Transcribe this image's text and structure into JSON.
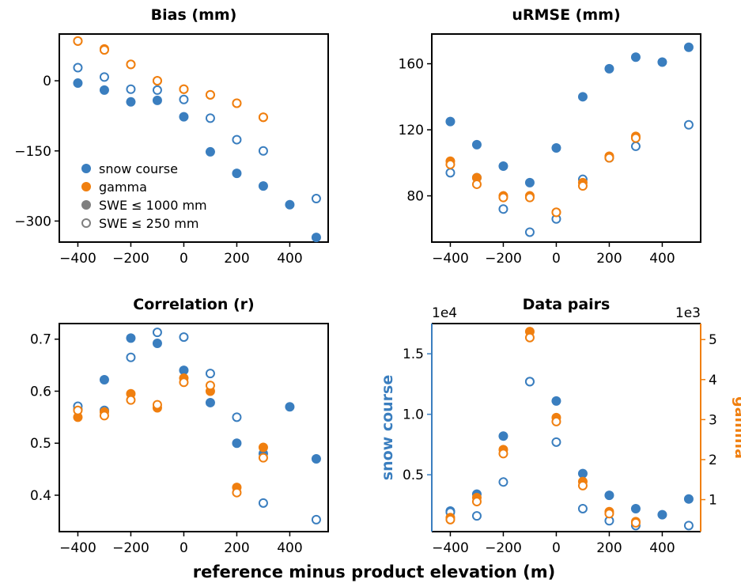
{
  "figure": {
    "xlabel": "reference minus product elevation (m)"
  },
  "colors": {
    "snow": "#3a7ebf",
    "gamma": "#f07f0f",
    "gray": "#7f7f7f"
  },
  "legend": {
    "entries": [
      {
        "label": "snow course",
        "style": "snow"
      },
      {
        "label": "gamma",
        "style": "gamma"
      },
      {
        "label": "SWE ≤ 1000 mm",
        "style": "filled-gray"
      },
      {
        "label": "SWE ≤ 250 mm",
        "style": "open-gray"
      }
    ],
    "location": "lower-left of Bias panel"
  },
  "chart_data": [
    {
      "type": "scatter",
      "title": "Bias (mm)",
      "xlabel": "",
      "ylabel": "",
      "xlim": [
        -470,
        545
      ],
      "ylim": [
        -345,
        100
      ],
      "xticks": [
        -400,
        -200,
        0,
        200,
        400
      ],
      "yticks": [
        0,
        -150,
        -300
      ],
      "series": [
        {
          "name": "snow course",
          "swe": "≤ 1000 mm",
          "style": "filled",
          "color": "snow",
          "x": [
            -400,
            -300,
            -200,
            -100,
            0,
            100,
            200,
            300,
            400,
            500
          ],
          "y": [
            -5,
            -20,
            -45,
            -42,
            -77,
            -152,
            -198,
            -225,
            -265,
            -335
          ]
        },
        {
          "name": "snow course",
          "swe": "≤ 250 mm",
          "style": "open",
          "color": "snow",
          "x": [
            -400,
            -300,
            -200,
            -100,
            0,
            100,
            200,
            300,
            500
          ],
          "y": [
            28,
            8,
            -18,
            -20,
            -40,
            -80,
            -126,
            -150,
            -252
          ]
        },
        {
          "name": "gamma",
          "swe": "≤ 1000 mm",
          "style": "filled",
          "color": "gamma",
          "x": [
            -400,
            -300,
            -200,
            -100,
            0,
            100,
            200,
            300
          ],
          "y": [
            85,
            68,
            35,
            0,
            -18,
            -30,
            -48,
            -78
          ]
        },
        {
          "name": "gamma",
          "swe": "≤ 250 mm",
          "style": "open",
          "color": "gamma",
          "x": [
            -400,
            -300,
            -200,
            -100,
            0,
            100,
            200,
            300
          ],
          "y": [
            85,
            66,
            35,
            0,
            -18,
            -30,
            -48,
            -78
          ]
        }
      ]
    },
    {
      "type": "scatter",
      "title": "uRMSE (mm)",
      "xlabel": "",
      "ylabel": "",
      "xlim": [
        -470,
        545
      ],
      "ylim": [
        52,
        178
      ],
      "xticks": [
        -400,
        -200,
        0,
        200,
        400
      ],
      "yticks": [
        80,
        120,
        160
      ],
      "series": [
        {
          "name": "snow course",
          "swe": "≤ 1000 mm",
          "style": "filled",
          "color": "snow",
          "x": [
            -400,
            -300,
            -200,
            -100,
            0,
            100,
            200,
            300,
            400,
            500
          ],
          "y": [
            125,
            111,
            98,
            88,
            109,
            140,
            157,
            164,
            161,
            170
          ]
        },
        {
          "name": "snow course",
          "swe": "≤ 250 mm",
          "style": "open",
          "color": "snow",
          "x": [
            -400,
            -300,
            -200,
            -100,
            0,
            100,
            200,
            300,
            500
          ],
          "y": [
            94,
            91,
            72,
            58,
            66,
            90,
            103,
            110,
            123
          ]
        },
        {
          "name": "gamma",
          "swe": "≤ 1000 mm",
          "style": "filled",
          "color": "gamma",
          "x": [
            -400,
            -300,
            -200,
            -100,
            0,
            100,
            200,
            300
          ],
          "y": [
            101,
            91,
            80,
            80,
            70,
            88,
            104,
            116
          ]
        },
        {
          "name": "gamma",
          "swe": "≤ 250 mm",
          "style": "open",
          "color": "gamma",
          "x": [
            -400,
            -300,
            -200,
            -100,
            0,
            100,
            200,
            300
          ],
          "y": [
            99,
            87,
            79,
            79,
            70,
            86,
            103,
            115
          ]
        }
      ]
    },
    {
      "type": "scatter",
      "title": "Correlation (r)",
      "xlabel": "",
      "ylabel": "",
      "xlim": [
        -470,
        545
      ],
      "ylim": [
        0.33,
        0.73
      ],
      "xticks": [
        -400,
        -200,
        0,
        200,
        400
      ],
      "yticks": [
        0.4,
        0.5,
        0.6,
        0.7
      ],
      "series": [
        {
          "name": "snow course",
          "swe": "≤ 1000 mm",
          "style": "filled",
          "color": "snow",
          "x": [
            -400,
            -300,
            -200,
            -100,
            0,
            100,
            200,
            300,
            400,
            500
          ],
          "y": [
            0.565,
            0.622,
            0.702,
            0.692,
            0.64,
            0.578,
            0.5,
            0.48,
            0.57,
            0.47
          ]
        },
        {
          "name": "snow course",
          "swe": "≤ 250 mm",
          "style": "open",
          "color": "snow",
          "x": [
            -400,
            -300,
            -200,
            -100,
            0,
            100,
            200,
            300,
            500
          ],
          "y": [
            0.571,
            0.563,
            0.665,
            0.713,
            0.704,
            0.634,
            0.55,
            0.385,
            0.353
          ]
        },
        {
          "name": "gamma",
          "swe": "≤ 1000 mm",
          "style": "filled",
          "color": "gamma",
          "x": [
            -400,
            -300,
            -200,
            -100,
            0,
            100,
            200,
            300
          ],
          "y": [
            0.55,
            0.56,
            0.595,
            0.568,
            0.625,
            0.6,
            0.415,
            0.492
          ]
        },
        {
          "name": "gamma",
          "swe": "≤ 250 mm",
          "style": "open",
          "color": "gamma",
          "x": [
            -400,
            -300,
            -200,
            -100,
            0,
            100,
            200,
            300
          ],
          "y": [
            0.563,
            0.553,
            0.583,
            0.574,
            0.617,
            0.611,
            0.405,
            0.472
          ]
        }
      ]
    },
    {
      "type": "scatter",
      "title": "Data pairs",
      "xlabel": "",
      "xlim": [
        -470,
        545
      ],
      "xticks": [
        -400,
        -200,
        0,
        200,
        400
      ],
      "y_left": {
        "label": "snow course",
        "multiplier": "1e4",
        "ylim": [
          0.03,
          1.75
        ],
        "ticks": [
          0.5,
          1.0,
          1.5
        ],
        "color": "snow"
      },
      "y_right": {
        "label": "gamma",
        "multiplier": "1e3",
        "ylim": [
          0.2,
          5.4
        ],
        "ticks": [
          1,
          2,
          3,
          4,
          5
        ],
        "color": "gamma"
      },
      "series": [
        {
          "name": "snow course",
          "swe": "≤ 1000 mm",
          "style": "filled",
          "color": "snow",
          "axis": "left",
          "x": [
            -400,
            -300,
            -200,
            -100,
            0,
            100,
            200,
            300,
            400,
            500
          ],
          "y": [
            0.2,
            0.34,
            0.82,
            1.27,
            1.11,
            0.51,
            0.33,
            0.22,
            0.17,
            0.3
          ]
        },
        {
          "name": "snow course",
          "swe": "≤ 250 mm",
          "style": "open",
          "color": "snow",
          "axis": "left",
          "x": [
            -400,
            -300,
            -200,
            -100,
            0,
            100,
            200,
            300,
            500
          ],
          "y": [
            0.19,
            0.16,
            0.44,
            1.27,
            0.77,
            0.22,
            0.12,
            0.08,
            0.08
          ]
        },
        {
          "name": "gamma",
          "swe": "≤ 1000 mm",
          "style": "filled",
          "color": "gamma",
          "axis": "right",
          "x": [
            -400,
            -300,
            -200,
            -100,
            0,
            100,
            200,
            300
          ],
          "y": [
            0.55,
            1.05,
            2.25,
            5.2,
            3.05,
            1.45,
            0.7,
            0.45
          ]
        },
        {
          "name": "gamma",
          "swe": "≤ 250 mm",
          "style": "open",
          "color": "gamma",
          "axis": "right",
          "x": [
            -400,
            -300,
            -200,
            -100,
            0,
            100,
            200,
            300
          ],
          "y": [
            0.5,
            0.95,
            2.15,
            5.05,
            2.95,
            1.35,
            0.65,
            0.42
          ]
        }
      ]
    }
  ]
}
